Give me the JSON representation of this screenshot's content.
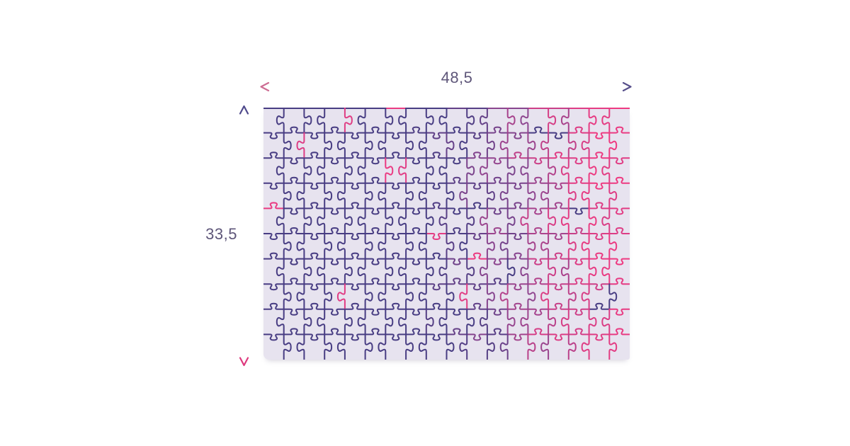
{
  "page": {
    "background": "#ffffff"
  },
  "diagram": {
    "width_dimension": {
      "value": "48,5",
      "arrow_color_left": "#cd6d93",
      "arrow_color_right": "#574f8b"
    },
    "height_dimension": {
      "value": "33,5",
      "arrow_color_top": "#504a8c",
      "arrow_color_bottom": "#de3a7e"
    },
    "label_color": "#5e5679"
  },
  "puzzle": {
    "rows": 10,
    "cols": 18,
    "mat_color": "#e7e3ef",
    "stroke_width": 2,
    "color_stops": [
      [
        0.0,
        "#483d83"
      ],
      [
        0.5,
        "#483d83"
      ],
      [
        0.68,
        "#8f4690"
      ],
      [
        0.84,
        "#d83e86"
      ],
      [
        1.0,
        "#ee3a81"
      ]
    ],
    "noise": 0.2,
    "outlier_rate": 0.035,
    "seed": 20240513
  }
}
